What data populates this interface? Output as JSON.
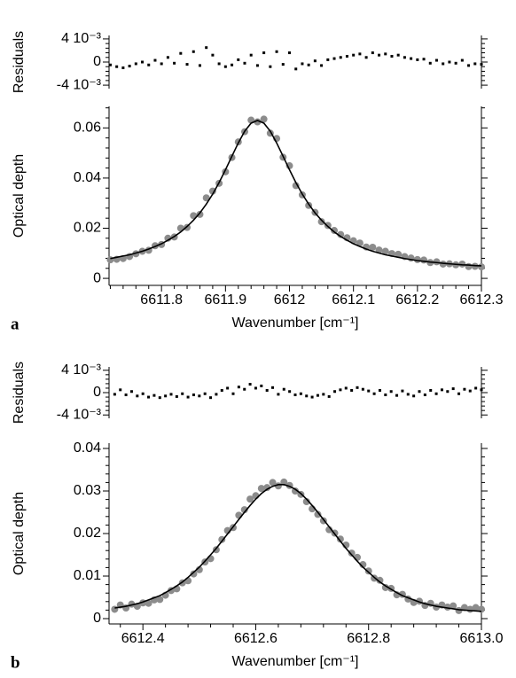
{
  "chart_data": [
    {
      "type": "scatter",
      "ylabel": "Residuals",
      "x": [
        6611.72,
        6611.73,
        6611.74,
        6611.75,
        6611.76,
        6611.77,
        6611.78,
        6611.79,
        6611.8,
        6611.81,
        6611.82,
        6611.83,
        6611.84,
        6611.85,
        6611.86,
        6611.87,
        6611.88,
        6611.89,
        6611.9,
        6611.91,
        6611.92,
        6611.93,
        6611.94,
        6611.95,
        6611.96,
        6611.97,
        6611.98,
        6611.99,
        6612,
        6612.01,
        6612.02,
        6612.03,
        6612.04,
        6612.05,
        6612.06,
        6612.07,
        6612.08,
        6612.09,
        6612.1,
        6612.11,
        6612.12,
        6612.13,
        6612.14,
        6612.15,
        6612.16,
        6612.17,
        6612.18,
        6612.19,
        6612.2,
        6612.21,
        6612.22,
        6612.23,
        6612.24,
        6612.25,
        6612.26,
        6612.27,
        6612.28,
        6612.29,
        6612.3
      ],
      "series": [
        {
          "color": "#000000",
          "style": "marker",
          "values": [
            -0.0005,
            -0.0008,
            -0.001,
            -0.0007,
            -0.0003,
            0,
            -0.0005,
            0.0003,
            -0.0003,
            0.0008,
            -0.0002,
            0.0015,
            -0.0004,
            0.0018,
            -0.0006,
            0.0025,
            0.0012,
            -0.0003,
            -0.0008,
            -0.0005,
            0.0004,
            -0.0002,
            0.0012,
            -0.0006,
            0.0016,
            -0.0008,
            0.0018,
            -0.0004,
            0.0016,
            -0.0012,
            -0.0003,
            -0.0005,
            0.0002,
            -0.0006,
            0.0004,
            0.0006,
            0.0008,
            0.001,
            0.0012,
            0.0014,
            0.0008,
            0.0016,
            0.0012,
            0.0014,
            0.001,
            0.0012,
            0.0008,
            0.0006,
            0.0004,
            0.0005,
            -0.0002,
            0.0003,
            -0.0003,
            0,
            -0.0002,
            0.0003,
            -0.0006,
            -0.0003,
            -0.0004
          ]
        }
      ],
      "xlim": [
        6611.718,
        6612.3
      ],
      "ylim": [
        -0.0046,
        0.0046
      ],
      "yticks": [
        {
          "value": 0.004,
          "label": "4 10⁻³"
        },
        0,
        {
          "value": -0.004,
          "label": "-4 10⁻³"
        }
      ]
    },
    {
      "type": "scatter",
      "ylabel": "Optical depth",
      "xlabel": "Wavenumber [cm⁻¹]",
      "panel_label": "a",
      "x": [
        6611.72,
        6611.73,
        6611.74,
        6611.75,
        6611.76,
        6611.77,
        6611.78,
        6611.79,
        6611.8,
        6611.81,
        6611.82,
        6611.83,
        6611.84,
        6611.85,
        6611.86,
        6611.87,
        6611.88,
        6611.89,
        6611.9,
        6611.91,
        6611.92,
        6611.93,
        6611.94,
        6611.95,
        6611.96,
        6611.97,
        6611.98,
        6611.99,
        6612,
        6612.01,
        6612.02,
        6612.03,
        6612.04,
        6612.05,
        6612.06,
        6612.07,
        6612.08,
        6612.09,
        6612.1,
        6612.11,
        6612.12,
        6612.13,
        6612.14,
        6612.15,
        6612.16,
        6612.17,
        6612.18,
        6612.19,
        6612.2,
        6612.21,
        6612.22,
        6612.23,
        6612.24,
        6612.25,
        6612.26,
        6612.27,
        6612.28,
        6612.29,
        6612.3
      ],
      "series": [
        {
          "color": "#8c8c8c",
          "style": "marker",
          "values": [
            0.0074,
            0.0076,
            0.0079,
            0.0087,
            0.0098,
            0.0108,
            0.0112,
            0.013,
            0.0135,
            0.016,
            0.0165,
            0.02,
            0.0203,
            0.025,
            0.0255,
            0.0321,
            0.0348,
            0.0379,
            0.0425,
            0.0482,
            0.0544,
            0.0585,
            0.0631,
            0.0624,
            0.0635,
            0.0579,
            0.0558,
            0.0483,
            0.0449,
            0.037,
            0.0333,
            0.0291,
            0.0263,
            0.0226,
            0.0211,
            0.0191,
            0.0175,
            0.0162,
            0.015,
            0.0141,
            0.0125,
            0.0124,
            0.0113,
            0.0108,
            0.0099,
            0.0096,
            0.0087,
            0.0081,
            0.0075,
            0.0073,
            0.0063,
            0.0066,
            0.0057,
            0.0058,
            0.0054,
            0.0057,
            0.0047,
            0.0048,
            0.0046
          ]
        },
        {
          "color": "#000000",
          "style": "line",
          "values": [
            0.0079,
            0.0084,
            0.0089,
            0.0094,
            0.0101,
            0.0108,
            0.0117,
            0.0127,
            0.0138,
            0.0152,
            0.0167,
            0.0185,
            0.0207,
            0.0232,
            0.0261,
            0.0296,
            0.0336,
            0.0382,
            0.0433,
            0.0487,
            0.054,
            0.0587,
            0.0619,
            0.063,
            0.0619,
            0.0587,
            0.054,
            0.0487,
            0.0433,
            0.0382,
            0.0336,
            0.0296,
            0.0261,
            0.0232,
            0.0207,
            0.0185,
            0.0167,
            0.0152,
            0.0138,
            0.0127,
            0.0117,
            0.0108,
            0.0101,
            0.0094,
            0.0089,
            0.0084,
            0.0079,
            0.0075,
            0.0071,
            0.0068,
            0.0065,
            0.0063,
            0.006,
            0.0058,
            0.0056,
            0.0054,
            0.0053,
            0.0051,
            0.005
          ]
        }
      ],
      "xlim": [
        6611.718,
        6612.3
      ],
      "ylim": [
        -0.0028,
        0.0686
      ],
      "xticks": [
        6611.8,
        6611.9,
        6612,
        6612.1,
        6612.2,
        6612.3
      ],
      "yticks": [
        0,
        0.02,
        0.04,
        0.06
      ]
    },
    {
      "type": "scatter",
      "ylabel": "Residuals",
      "x": [
        6612.35,
        6612.36,
        6612.37,
        6612.38,
        6612.39,
        6612.4,
        6612.41,
        6612.42,
        6612.43,
        6612.44,
        6612.45,
        6612.46,
        6612.47,
        6612.48,
        6612.49,
        6612.5,
        6612.51,
        6612.52,
        6612.53,
        6612.54,
        6612.55,
        6612.56,
        6612.57,
        6612.58,
        6612.59,
        6612.6,
        6612.61,
        6612.62,
        6612.63,
        6612.64,
        6612.65,
        6612.66,
        6612.67,
        6612.68,
        6612.69,
        6612.7,
        6612.71,
        6612.72,
        6612.73,
        6612.74,
        6612.75,
        6612.76,
        6612.77,
        6612.78,
        6612.79,
        6612.8,
        6612.81,
        6612.82,
        6612.83,
        6612.84,
        6612.85,
        6612.86,
        6612.87,
        6612.88,
        6612.89,
        6612.9,
        6612.91,
        6612.92,
        6612.93,
        6612.94,
        6612.95,
        6612.96,
        6612.97,
        6612.98,
        6612.99,
        6613
      ],
      "series": [
        {
          "color": "#000000",
          "style": "marker",
          "values": [
            -0.0003,
            0.0005,
            -0.0004,
            0.0002,
            -0.0006,
            -0.0002,
            -0.0008,
            -0.0005,
            -0.0009,
            -0.0006,
            -0.0003,
            -0.0007,
            -0.0002,
            -0.0008,
            -0.0004,
            -0.0006,
            -0.0002,
            -0.0009,
            -0.0003,
            0.0004,
            0.0008,
            -0.0002,
            0.001,
            0.0006,
            0.0015,
            0.0008,
            0.0012,
            0.0004,
            0.0009,
            -0.0003,
            0.0006,
            0.0002,
            -0.0004,
            -0.0002,
            -0.0006,
            -0.0008,
            -0.0005,
            -0.0003,
            -0.0007,
            0.0002,
            0.0005,
            0.0008,
            0.0004,
            0.0009,
            0.0006,
            0.0003,
            -0.0002,
            0.0004,
            -0.0004,
            0.0002,
            -0.0005,
            0.0003,
            -0.0003,
            -0.0006,
            0.0002,
            -0.0004,
            0.0004,
            -0.0002,
            0.0005,
            0.0002,
            0.0007,
            -0.0002,
            0.0006,
            0.0003,
            0.0008,
            0.0005
          ]
        }
      ],
      "xlim": [
        6612.34,
        6613
      ],
      "ylim": [
        -0.0046,
        0.0046
      ],
      "yticks": [
        {
          "value": 0.004,
          "label": "4 10⁻³"
        },
        0,
        {
          "value": -0.004,
          "label": "-4 10⁻³"
        }
      ]
    },
    {
      "type": "scatter",
      "ylabel": "Optical depth",
      "xlabel": "Wavenumber [cm⁻¹]",
      "panel_label": "b",
      "x": [
        6612.35,
        6612.36,
        6612.37,
        6612.38,
        6612.39,
        6612.4,
        6612.41,
        6612.42,
        6612.43,
        6612.44,
        6612.45,
        6612.46,
        6612.47,
        6612.48,
        6612.49,
        6612.5,
        6612.51,
        6612.52,
        6612.53,
        6612.54,
        6612.55,
        6612.56,
        6612.57,
        6612.58,
        6612.59,
        6612.6,
        6612.61,
        6612.62,
        6612.63,
        6612.64,
        6612.65,
        6612.66,
        6612.67,
        6612.68,
        6612.69,
        6612.7,
        6612.71,
        6612.72,
        6612.73,
        6612.74,
        6612.75,
        6612.76,
        6612.77,
        6612.78,
        6612.79,
        6612.8,
        6612.81,
        6612.82,
        6612.83,
        6612.84,
        6612.85,
        6612.86,
        6612.87,
        6612.88,
        6612.89,
        6612.9,
        6612.91,
        6612.92,
        6612.93,
        6612.94,
        6612.95,
        6612.96,
        6612.97,
        6612.98,
        6612.99,
        6613
      ],
      "series": [
        {
          "color": "#8c8c8c",
          "style": "marker",
          "values": [
            0.0022,
            0.0032,
            0.0025,
            0.0034,
            0.0029,
            0.0037,
            0.0036,
            0.0044,
            0.0045,
            0.0055,
            0.0066,
            0.007,
            0.0084,
            0.0089,
            0.0105,
            0.0115,
            0.0133,
            0.0141,
            0.0162,
            0.0186,
            0.0207,
            0.0214,
            0.0243,
            0.0256,
            0.0281,
            0.0289,
            0.0306,
            0.0308,
            0.032,
            0.0312,
            0.0321,
            0.0313,
            0.03,
            0.0292,
            0.0275,
            0.0258,
            0.0245,
            0.023,
            0.0209,
            0.0201,
            0.0187,
            0.0173,
            0.0154,
            0.0144,
            0.0127,
            0.0112,
            0.0095,
            0.009,
            0.0073,
            0.0071,
            0.0056,
            0.0057,
            0.0046,
            0.0038,
            0.0041,
            0.0031,
            0.0036,
            0.0027,
            0.0032,
            0.0027,
            0.003,
            0.0019,
            0.0026,
            0.0022,
            0.0026,
            0.0022
          ]
        },
        {
          "color": "#000000",
          "style": "line",
          "values": [
            0.0025,
            0.0027,
            0.0029,
            0.0032,
            0.0035,
            0.0039,
            0.0044,
            0.0049,
            0.0054,
            0.0061,
            0.0069,
            0.0077,
            0.0086,
            0.0097,
            0.0109,
            0.0121,
            0.0135,
            0.015,
            0.0165,
            0.0182,
            0.0199,
            0.0216,
            0.0233,
            0.025,
            0.0266,
            0.0281,
            0.0294,
            0.0304,
            0.0311,
            0.0315,
            0.0315,
            0.0311,
            0.0304,
            0.0294,
            0.0281,
            0.0266,
            0.025,
            0.0233,
            0.0216,
            0.0199,
            0.0182,
            0.0165,
            0.015,
            0.0135,
            0.0121,
            0.0109,
            0.0097,
            0.0086,
            0.0077,
            0.0069,
            0.0061,
            0.0054,
            0.0049,
            0.0044,
            0.0039,
            0.0035,
            0.0032,
            0.0029,
            0.0027,
            0.0025,
            0.0023,
            0.0021,
            0.002,
            0.0019,
            0.0018,
            0.0017
          ]
        }
      ],
      "xlim": [
        6612.34,
        6613
      ],
      "ylim": [
        -0.00125,
        0.04125
      ],
      "xticks": [
        6612.4,
        6612.6,
        6612.8,
        {
          "value": 6613,
          "label": "6613.0"
        }
      ],
      "yticks": [
        0,
        0.01,
        0.02,
        0.03,
        0.04
      ]
    }
  ]
}
